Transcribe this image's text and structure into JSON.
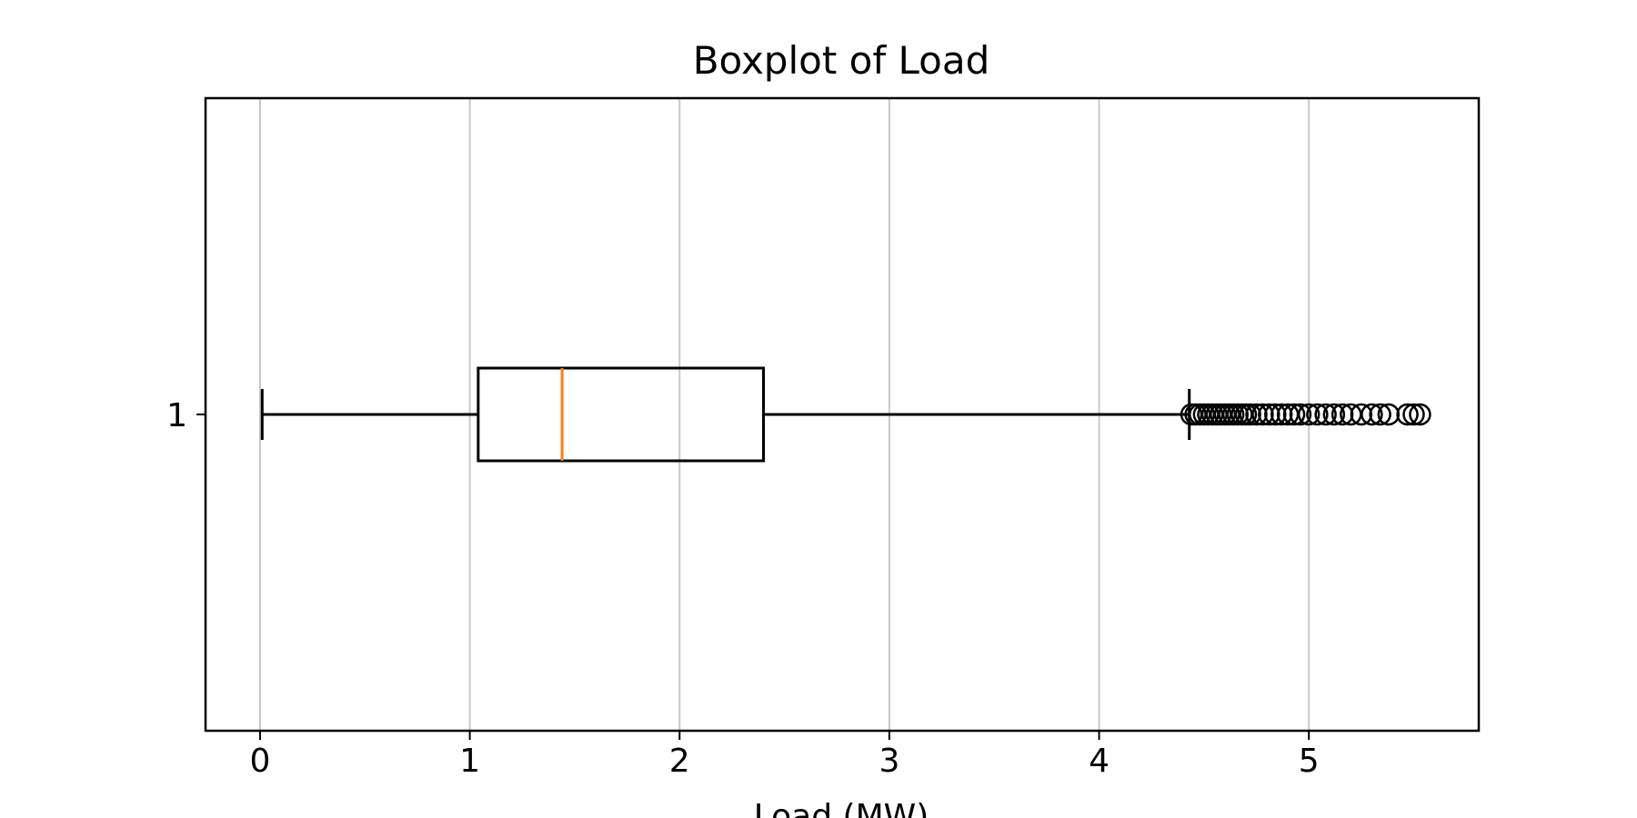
{
  "chart_data": {
    "type": "boxplot",
    "orientation": "horizontal",
    "title": "Boxplot of Load",
    "xlabel": "Load (MW)",
    "ylabel": "",
    "xlim": [
      -0.26,
      5.81
    ],
    "xticks": [
      0,
      1,
      2,
      3,
      4,
      5
    ],
    "xtick_labels": [
      "0",
      "1",
      "2",
      "3",
      "4",
      "5"
    ],
    "ytick_labels": [
      "1"
    ],
    "grid": "vertical",
    "series": [
      {
        "category": "1",
        "whisker_low": 0.01,
        "q1": 1.04,
        "median": 1.44,
        "q3": 2.4,
        "whisker_high": 4.43,
        "outliers": [
          4.44,
          4.46,
          4.48,
          4.5,
          4.52,
          4.54,
          4.56,
          4.58,
          4.6,
          4.62,
          4.64,
          4.66,
          4.68,
          4.7,
          4.72,
          4.75,
          4.78,
          4.81,
          4.84,
          4.87,
          4.9,
          4.93,
          4.96,
          5.0,
          5.04,
          5.08,
          5.12,
          5.16,
          5.2,
          5.25,
          5.3,
          5.34,
          5.38,
          5.47,
          5.5,
          5.53
        ]
      }
    ],
    "colors": {
      "box": "#000000",
      "median": "#ff7f0e",
      "grid": "#c8c8c8"
    }
  }
}
